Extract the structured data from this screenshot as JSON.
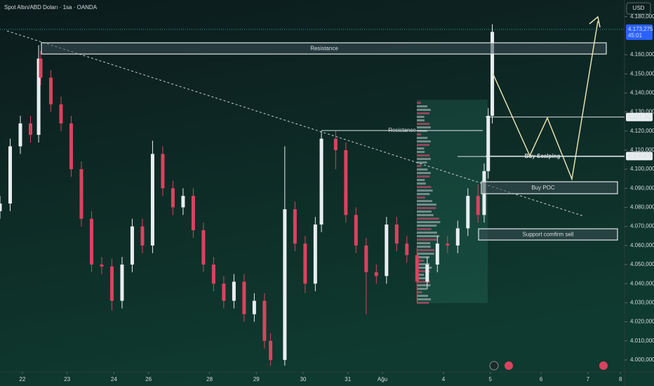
{
  "chart_data": {
    "type": "candlestick",
    "title": "Spot Altın/ABD Doları · 1sa · OANDA",
    "currency": "USD",
    "up_color": "#e8eef0",
    "down_color": "#d9435f",
    "x": [
      0,
      5,
      10,
      15,
      19,
      20,
      25,
      30,
      35,
      40,
      45,
      50,
      55,
      60,
      65,
      70,
      75,
      80,
      85,
      90,
      95,
      100,
      105,
      110,
      115,
      120,
      125,
      130,
      133,
      140,
      145,
      150,
      155,
      158,
      165,
      170,
      175,
      180,
      185,
      190,
      195,
      200,
      205,
      210,
      215,
      220,
      225,
      230,
      235,
      238,
      240,
      242
    ],
    "open": [
      4078,
      4082,
      4112,
      4124,
      4118,
      4158,
      4148,
      4134,
      4124,
      4100,
      4074,
      4050,
      4049,
      4031,
      4050,
      4070,
      4060,
      4108,
      4090,
      4080,
      4086,
      4068,
      4050,
      4040,
      4031,
      4041,
      4024,
      4031,
      4010,
      4000,
      4079,
      4061,
      4040,
      4071,
      4116,
      4110,
      4076,
      4060,
      4046,
      4044,
      4071,
      4061,
      4055,
      4041,
      4050,
      4061,
      4060,
      4069,
      4086,
      4076,
      4099,
      4128
    ],
    "high": [
      4086,
      4116,
      4128,
      4128,
      4165,
      4162,
      4152,
      4138,
      4128,
      4104,
      4078,
      4054,
      4053,
      4054,
      4074,
      4074,
      4115,
      4112,
      4094,
      4090,
      4090,
      4072,
      4054,
      4044,
      4045,
      4045,
      4035,
      4035,
      4014,
      4112,
      4083,
      4065,
      4075,
      4120,
      4120,
      4114,
      4080,
      4064,
      4050,
      4075,
      4075,
      4065,
      4059,
      4054,
      4065,
      4065,
      4073,
      4090,
      4092,
      4103,
      4132,
      4176
    ],
    "low": [
      4074,
      4078,
      4108,
      4114,
      4114,
      4144,
      4130,
      4120,
      4096,
      4070,
      4046,
      4045,
      4026,
      4027,
      4046,
      4056,
      4056,
      4086,
      4076,
      4076,
      4064,
      4046,
      4036,
      4027,
      4027,
      4020,
      4020,
      4006,
      3997,
      3997,
      4057,
      4035,
      4036,
      4067,
      4100,
      4072,
      4056,
      4024,
      4040,
      4040,
      4057,
      4051,
      4030,
      4037,
      4046,
      4056,
      4056,
      4065,
      4072,
      4072,
      4095,
      4124
    ],
    "close": [
      4082,
      4112,
      4124,
      4118,
      4158,
      4148,
      4134,
      4124,
      4100,
      4074,
      4050,
      4049,
      4031,
      4050,
      4070,
      4060,
      4108,
      4090,
      4080,
      4086,
      4068,
      4050,
      4040,
      4031,
      4041,
      4024,
      4031,
      4010,
      4000,
      4079,
      4061,
      4040,
      4071,
      4116,
      4110,
      4076,
      4060,
      4046,
      4044,
      4071,
      4061,
      4055,
      4041,
      4050,
      4061,
      4060,
      4069,
      4086,
      4076,
      4099,
      4128,
      4172
    ],
    "xlim": [
      0,
      307
    ],
    "xticks": [
      {
        "value": 11,
        "label": "22"
      },
      {
        "value": 33,
        "label": "23"
      },
      {
        "value": 56,
        "label": "24"
      },
      {
        "value": 73,
        "label": "26"
      },
      {
        "value": 103,
        "label": "28"
      },
      {
        "value": 126,
        "label": "29"
      },
      {
        "value": 149,
        "label": "30"
      },
      {
        "value": 171,
        "label": "31"
      },
      {
        "value": 188,
        "label": "Ağu"
      },
      {
        "value": 218,
        "label": "4"
      },
      {
        "value": 241,
        "label": "5"
      },
      {
        "value": 266,
        "label": "6"
      },
      {
        "value": 289,
        "label": "7"
      },
      {
        "value": 305,
        "label": "8"
      }
    ],
    "ylim": [
      3993.7,
      4188.7
    ],
    "yticks": [
      {
        "value": 4000,
        "label": "4.000,000"
      },
      {
        "value": 4010,
        "label": "4.010,000"
      },
      {
        "value": 4020,
        "label": "4.020,000"
      },
      {
        "value": 4030,
        "label": "4.030,000"
      },
      {
        "value": 4040,
        "label": "4.040,000"
      },
      {
        "value": 4050,
        "label": "4.050,000"
      },
      {
        "value": 4060,
        "label": "4.060,000"
      },
      {
        "value": 4070,
        "label": "4.070,000"
      },
      {
        "value": 4080,
        "label": "4.080,000"
      },
      {
        "value": 4090,
        "label": "4.090,000"
      },
      {
        "value": 4100,
        "label": "4.100,000"
      },
      {
        "value": 4110,
        "label": "4.110,000"
      },
      {
        "value": 4120,
        "label": "4.120,000"
      },
      {
        "value": 4130,
        "label": "4.130,000"
      },
      {
        "value": 4140,
        "label": "4.140,000"
      },
      {
        "value": 4150,
        "label": "4.150,000"
      },
      {
        "value": 4160,
        "label": "4.160,000"
      },
      {
        "value": 4180,
        "label": "4.180,000"
      }
    ],
    "last_price": {
      "value": 4173.275,
      "label": "4.173,275",
      "countdown": "45:01"
    },
    "price_levels": [
      {
        "value": 4127.367,
        "label": "4.127,367"
      },
      {
        "value": 4106.879,
        "label": "4.106,879"
      }
    ],
    "annotations": [
      "Resistance",
      "Resistance",
      "Buy Scalping",
      "Buy POC",
      "Support comfirm sell"
    ]
  }
}
